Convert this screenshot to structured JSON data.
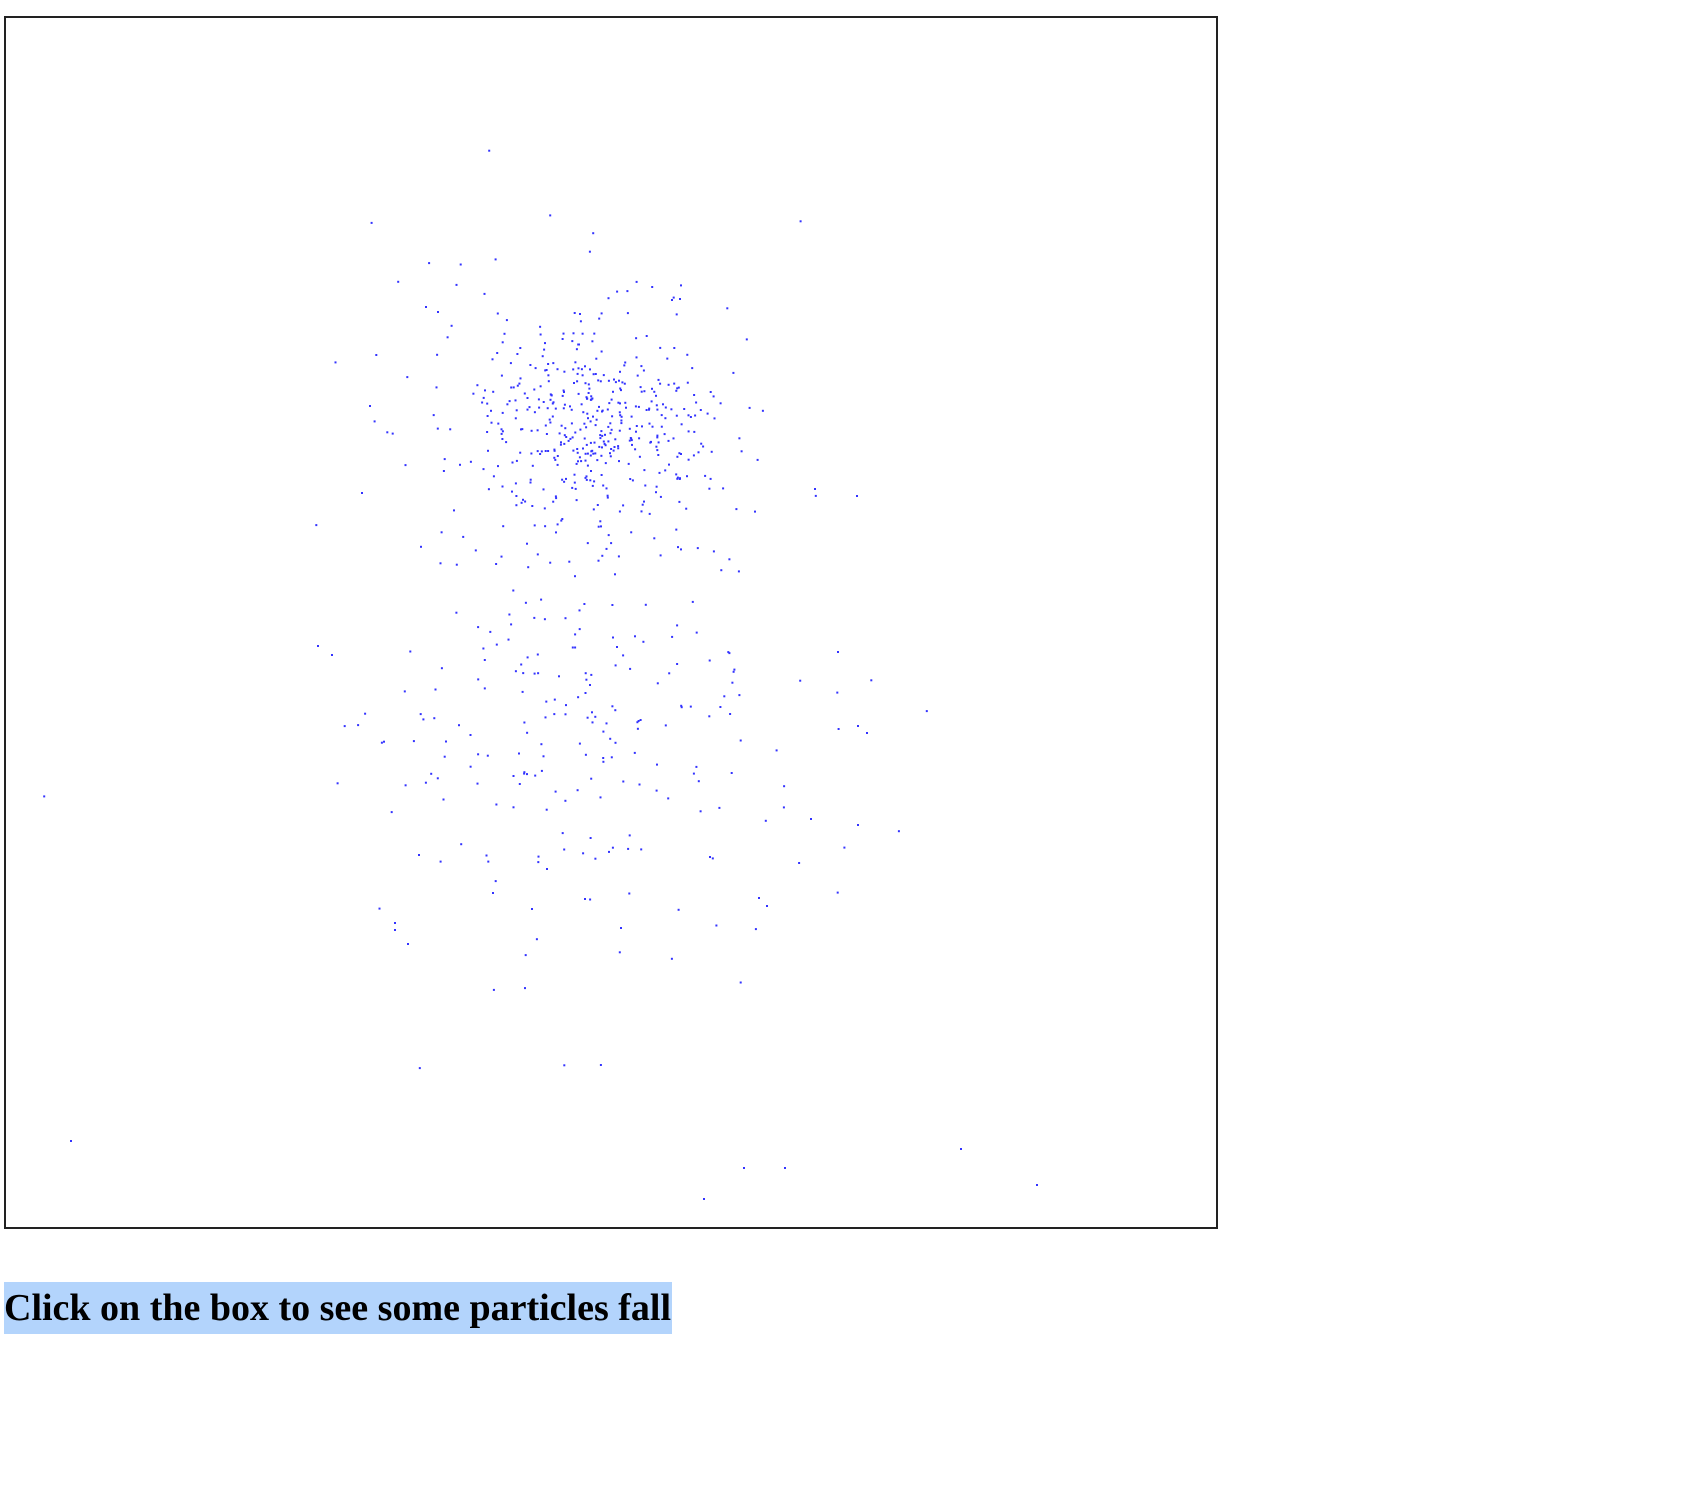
{
  "instruction": "Click on the box to see some particles fall",
  "particle_color": "#3333ff",
  "selection_color": "#b3d4fc"
}
